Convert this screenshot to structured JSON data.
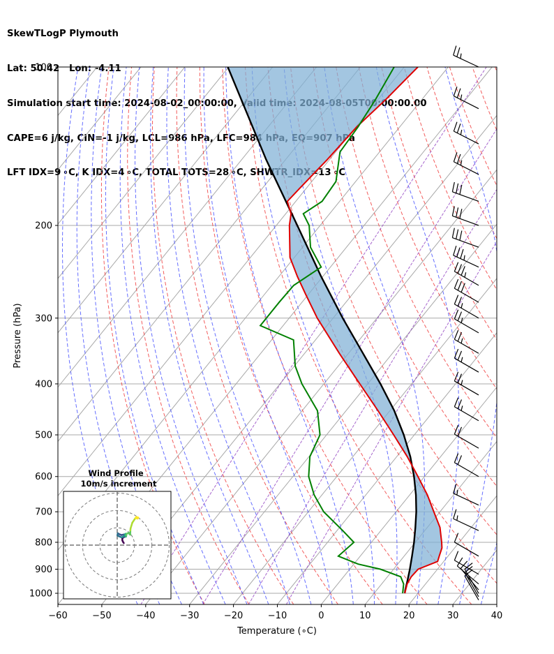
{
  "header": {
    "title": "SkewTLogP Plymouth",
    "line2": "Lat: 50.42   Lon: -4.11",
    "line3": "Simulation start time: 2024-08-02_00:00:00, Valid time: 2024-08-05T00:00:00.00",
    "line4": "CAPE=6 j/kg, CIN=-1 j/kg, LCL=986 hPa, LFC=984 hPa, EQ=907 hPa",
    "line5": "LFT IDX=9 ∘C, K IDX=4 ∘C, TOTAL TOTS=28 ∘C, SHWTR_IDX=13 ∘C"
  },
  "chart_data": {
    "type": "line",
    "subtype": "skew-T log-P diagram",
    "xlabel": "Temperature (∘C)",
    "ylabel": "Pressure (hPa)",
    "xlim": [
      -60,
      40
    ],
    "ylim": [
      1050,
      100
    ],
    "y_scale": "log",
    "xticks": [
      "−60",
      "−50",
      "−40",
      "−30",
      "−20",
      "−10",
      "0",
      "10",
      "20",
      "30",
      "40"
    ],
    "yticks": [
      "100",
      "200",
      "300",
      "400",
      "500",
      "600",
      "700",
      "800",
      "900",
      "1000"
    ],
    "colors": {
      "temperature": "#e00000",
      "dewpoint": "#008000",
      "parcel": "#000000",
      "cape_fill": "#7fb0d5",
      "dry_adiabats": "#f04040",
      "moist_adiabats": "#4a55ff",
      "mixing_ratio": "#9040c0",
      "isotherms": "#a8a8a8"
    },
    "temperature": {
      "p": [
        1000,
        960,
        930,
        900,
        870,
        850,
        820,
        800,
        750,
        700,
        650,
        600,
        550,
        500,
        450,
        400,
        350,
        300,
        270,
        250,
        230,
        210,
        200,
        190,
        180,
        170,
        150,
        130,
        115,
        100
      ],
      "t": [
        17.0,
        15.8,
        15.4,
        15.6,
        18.6,
        18.0,
        17.1,
        16.0,
        12.9,
        8.6,
        4.0,
        -1.5,
        -7.6,
        -14.7,
        -22.7,
        -31.8,
        -42.1,
        -53.6,
        -60.7,
        -65.8,
        -71.0,
        -74.9,
        -77.0,
        -78.8,
        -81.9,
        -81.5,
        -80.5,
        -79.8,
        -78.2,
        -76.9
      ]
    },
    "dewpoint": {
      "p": [
        1000,
        960,
        930,
        900,
        880,
        850,
        800,
        760,
        700,
        650,
        600,
        550,
        500,
        450,
        400,
        370,
        330,
        310,
        280,
        260,
        240,
        220,
        200,
        190,
        180,
        165,
        145,
        130,
        115,
        100
      ],
      "td": [
        16.5,
        15.0,
        13.0,
        7.0,
        1.0,
        -5.0,
        -4.0,
        -8.7,
        -16.5,
        -21.8,
        -26.4,
        -29.8,
        -31.5,
        -36.5,
        -45.0,
        -49.8,
        -55.0,
        -65.2,
        -65.2,
        -65.0,
        -62.1,
        -68.2,
        -72.5,
        -76.0,
        -74.0,
        -74.5,
        -79.0,
        -79.5,
        -80.6,
        -82.3
      ]
    },
    "parcel": {
      "p": [
        1000,
        986,
        950,
        900,
        850,
        800,
        750,
        700,
        650,
        600,
        550,
        500,
        450,
        400,
        350,
        300,
        250,
        200,
        150,
        100
      ],
      "t": [
        17.0,
        16.5,
        15.4,
        13.7,
        11.8,
        9.7,
        7.3,
        4.6,
        1.4,
        -2.4,
        -6.9,
        -12.4,
        -19.0,
        -27.1,
        -36.7,
        -47.8,
        -60.4,
        -75.2,
        -94.4,
        -120.2
      ]
    },
    "wind_barbs": {
      "p": [
        100,
        120,
        140,
        160,
        180,
        200,
        220,
        240,
        260,
        280,
        300,
        320,
        350,
        380,
        420,
        470,
        530,
        600,
        680,
        760,
        850,
        920,
        960,
        985,
        1000,
        1015,
        1030
      ],
      "speed_kt": [
        24,
        25,
        25,
        25,
        29,
        31,
        31,
        34,
        33,
        30,
        24,
        24,
        24,
        24,
        24,
        24,
        20,
        18,
        17,
        16,
        12,
        10,
        9,
        9,
        9,
        9,
        9
      ],
      "direction_deg": [
        295,
        297,
        297,
        297,
        290,
        290,
        290,
        295,
        300,
        300,
        300,
        300,
        300,
        300,
        300,
        300,
        300,
        300,
        295,
        295,
        300,
        300,
        310,
        320,
        330,
        330,
        330
      ]
    },
    "hodograph": {
      "title": "Wind Profile",
      "subtitle": "10m/s increment",
      "rings_ms": [
        10,
        20,
        30
      ],
      "range_ms": 31,
      "u_ms": [
        3.8,
        3.4,
        3.0,
        2.9,
        3.6,
        5.0,
        4.6,
        3.7,
        2.5,
        1.0,
        0.4,
        0.3,
        0.1,
        0.5,
        2.5,
        3.3,
        4.1,
        4.7,
        4.8,
        5.0,
        5.2,
        5.5,
        6.4,
        7.5,
        7.6,
        7.7,
        8.7,
        10.5,
        11.8,
        12.1,
        11.0
      ],
      "v_ms": [
        1.2,
        1.8,
        2.6,
        3.8,
        4.5,
        5.0,
        5.8,
        6.1,
        5.8,
        6.4,
        6.8,
        6.3,
        5.8,
        5.3,
        4.5,
        4.8,
        5.6,
        6.5,
        5.0,
        4.9,
        5.5,
        6.6,
        7.0,
        6.0,
        8.5,
        9.6,
        12.9,
        15.6,
        15.3,
        15.9,
        16.3
      ]
    }
  }
}
